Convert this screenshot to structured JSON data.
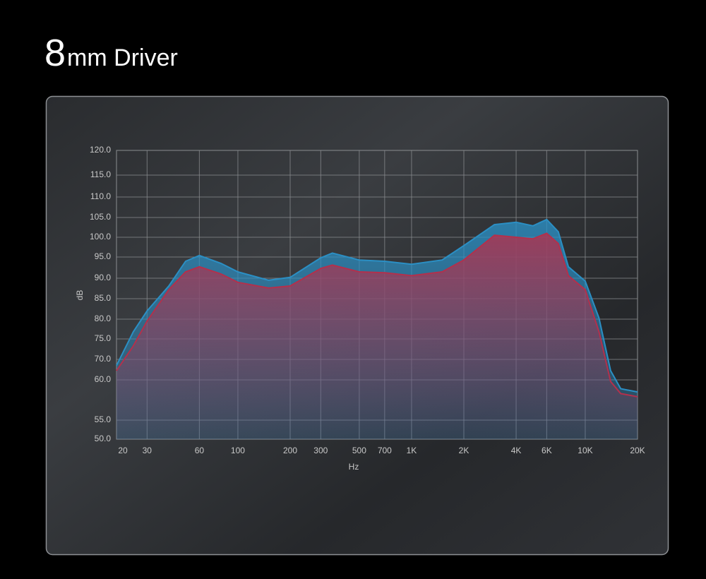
{
  "chart_data": {
    "type": "area",
    "title_number": "8",
    "title": "mm Driver",
    "xlabel": "Hz",
    "ylabel": "dB",
    "xscale": "log",
    "grid": true,
    "x": [
      20,
      25,
      30,
      40,
      50,
      60,
      80,
      100,
      150,
      200,
      300,
      350,
      500,
      700,
      1000,
      1500,
      2000,
      3000,
      4000,
      5000,
      6000,
      7000,
      8000,
      10000,
      12000,
      14000,
      16000,
      20000
    ],
    "series": [
      {
        "color": "#2b8fc4",
        "values": [
          67,
          76.8,
          82,
          88.1,
          94,
          95.4,
          93.5,
          91.5,
          89.5,
          90.2,
          94.8,
          96,
          94.3,
          94,
          93.3,
          94.3,
          97.9,
          103.2,
          103.8,
          102.9,
          104.5,
          101.4,
          92.7,
          89.3,
          80.3,
          64.5,
          58.9,
          58.5
        ]
      },
      {
        "color": "#b3304c",
        "values": [
          64.5,
          73.3,
          79.5,
          87.2,
          91.5,
          92.7,
          91,
          89,
          87.6,
          88.1,
          92.3,
          93.1,
          91.5,
          91.3,
          90.6,
          91.5,
          94.3,
          100.5,
          100,
          99.6,
          101,
          98.4,
          90.6,
          87.2,
          76.8,
          59.8,
          58.3,
          57.9
        ]
      }
    ],
    "xlim": [
      20,
      20000
    ],
    "xticks": [
      20,
      30,
      60,
      100,
      200,
      300,
      500,
      700,
      {
        "value": 1000,
        "label": "1K"
      },
      {
        "value": 2000,
        "label": "2K"
      },
      {
        "value": 4000,
        "label": "4K"
      },
      {
        "value": 6000,
        "label": "6K"
      },
      {
        "value": 10000,
        "label": "10K"
      },
      {
        "value": 20000,
        "label": "20K"
      }
    ],
    "ylim": [
      50,
      120
    ],
    "yticks": [
      {
        "value": 50,
        "label": "50.0"
      },
      {
        "value": 55,
        "label": "55.0"
      },
      {
        "value": 60,
        "label": "60.0"
      },
      {
        "value": 70,
        "label": "70.0"
      },
      {
        "value": 75,
        "label": "75.0"
      },
      {
        "value": 80,
        "label": "80.0"
      },
      {
        "value": 85,
        "label": "85.0"
      },
      {
        "value": 90,
        "label": "90.0"
      },
      {
        "value": 95,
        "label": "95.0"
      },
      {
        "value": 100,
        "label": "100.0"
      },
      {
        "value": 105,
        "label": "105.0"
      },
      {
        "value": 110,
        "label": "110.0"
      },
      {
        "value": 115,
        "label": "115.0"
      },
      {
        "value": 120,
        "label": "120.0"
      }
    ]
  }
}
